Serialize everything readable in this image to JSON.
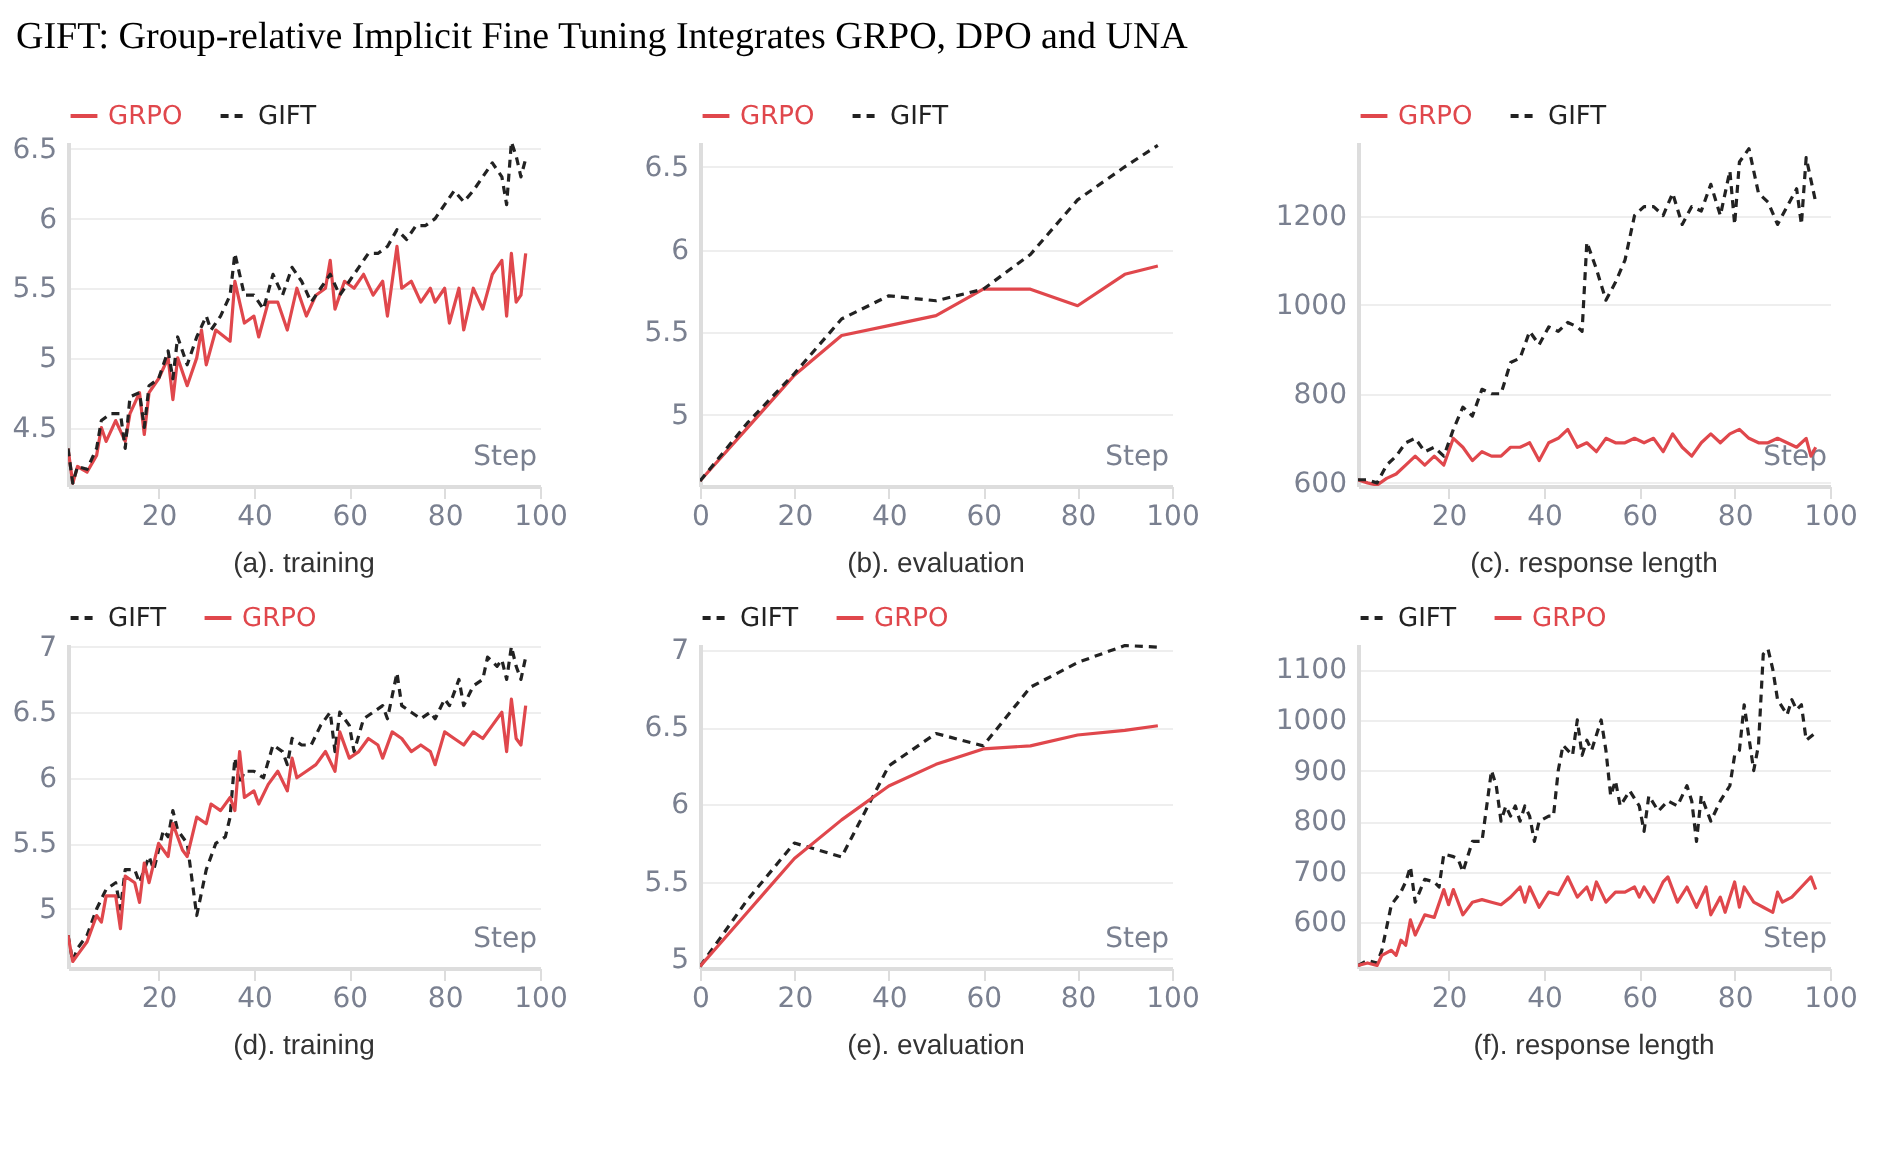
{
  "chart_data": [
    {
      "type": "line",
      "title": "GIFT: Group-relative Implicit Fine Tuning Integrates GRPO, DPO and UNA",
      "subtitle": "(a). training",
      "xlabel": "Step",
      "xlim": [
        1,
        100
      ],
      "xticks": [
        20,
        40,
        60,
        80,
        100
      ],
      "ylim": [
        4.08,
        6.55
      ],
      "yticks": [
        4.5,
        5,
        5.5,
        6,
        6.5
      ],
      "grid": "y",
      "legend": "top",
      "series": [
        {
          "name": "GRPO",
          "color": "#e0474c",
          "line_style": "solid",
          "x": [
            1,
            2,
            3,
            5,
            7,
            8,
            9,
            11,
            13,
            14,
            16,
            17,
            18,
            20,
            22,
            23,
            24,
            26,
            28,
            29,
            30,
            32,
            35,
            36,
            38,
            40,
            41,
            43,
            45,
            47,
            49,
            51,
            53,
            55,
            56,
            57,
            59,
            61,
            63,
            65,
            67,
            68,
            70,
            71,
            73,
            75,
            77,
            78,
            80,
            81,
            83,
            84,
            86,
            88,
            90,
            92,
            93,
            94,
            95,
            96,
            97
          ],
          "values": [
            4.35,
            4.1,
            4.22,
            4.18,
            4.3,
            4.5,
            4.4,
            4.55,
            4.4,
            4.6,
            4.75,
            4.45,
            4.75,
            4.85,
            5.0,
            4.7,
            5.0,
            4.8,
            5.0,
            5.2,
            4.95,
            5.2,
            5.12,
            5.55,
            5.25,
            5.3,
            5.15,
            5.4,
            5.4,
            5.2,
            5.5,
            5.3,
            5.45,
            5.5,
            5.7,
            5.35,
            5.55,
            5.5,
            5.6,
            5.45,
            5.55,
            5.3,
            5.8,
            5.5,
            5.55,
            5.4,
            5.5,
            5.4,
            5.5,
            5.25,
            5.5,
            5.2,
            5.5,
            5.35,
            5.6,
            5.7,
            5.3,
            5.75,
            5.4,
            5.45,
            5.75
          ]
        },
        {
          "name": "GIFT",
          "color": "#222222",
          "line_style": "dashed",
          "x": [
            1,
            2,
            3,
            5,
            7,
            8,
            10,
            12,
            13,
            14,
            16,
            17,
            18,
            20,
            22,
            23,
            24,
            26,
            28,
            30,
            31,
            33,
            35,
            36,
            38,
            40,
            42,
            44,
            46,
            48,
            50,
            52,
            54,
            56,
            58,
            60,
            62,
            64,
            66,
            68,
            70,
            72,
            74,
            76,
            78,
            80,
            82,
            84,
            86,
            88,
            90,
            92,
            93,
            94,
            95,
            96,
            97
          ],
          "values": [
            4.35,
            4.1,
            4.22,
            4.2,
            4.35,
            4.55,
            4.6,
            4.6,
            4.35,
            4.72,
            4.75,
            4.5,
            4.8,
            4.85,
            5.05,
            4.85,
            5.15,
            4.95,
            5.15,
            5.3,
            5.2,
            5.3,
            5.45,
            5.75,
            5.45,
            5.45,
            5.35,
            5.6,
            5.45,
            5.65,
            5.55,
            5.4,
            5.5,
            5.6,
            5.45,
            5.55,
            5.65,
            5.75,
            5.75,
            5.8,
            5.92,
            5.85,
            5.95,
            5.95,
            6.0,
            6.1,
            6.2,
            6.12,
            6.2,
            6.3,
            6.4,
            6.3,
            6.1,
            6.55,
            6.45,
            6.3,
            6.43
          ]
        }
      ]
    },
    {
      "type": "line",
      "subtitle": "(b). evaluation",
      "xlabel": "Step",
      "xlim": [
        0,
        100
      ],
      "xticks": [
        0,
        20,
        40,
        60,
        80,
        100
      ],
      "ylim": [
        4.57,
        6.65
      ],
      "yticks": [
        5,
        5.5,
        6,
        6.5
      ],
      "grid": "y",
      "legend": "top",
      "series": [
        {
          "name": "GRPO",
          "color": "#e0474c",
          "line_style": "solid",
          "x": [
            0,
            10,
            20,
            30,
            40,
            50,
            60,
            70,
            80,
            90,
            97
          ],
          "values": [
            4.6,
            4.92,
            5.24,
            5.48,
            5.54,
            5.6,
            5.76,
            5.76,
            5.66,
            5.85,
            5.9
          ]
        },
        {
          "name": "GIFT",
          "color": "#222222",
          "line_style": "dashed",
          "x": [
            0,
            10,
            20,
            30,
            40,
            50,
            60,
            70,
            80,
            90,
            97
          ],
          "values": [
            4.6,
            4.95,
            5.25,
            5.58,
            5.72,
            5.69,
            5.76,
            5.97,
            6.3,
            6.5,
            6.63
          ]
        }
      ]
    },
    {
      "type": "line",
      "subtitle": "(c). response length",
      "xlabel": "Step",
      "xlim": [
        1,
        100
      ],
      "xticks": [
        20,
        40,
        60,
        80,
        100
      ],
      "ylim": [
        593,
        1365
      ],
      "yticks": [
        600,
        800,
        1000,
        1200
      ],
      "grid": "y",
      "legend": "top",
      "series": [
        {
          "name": "GRPO",
          "color": "#e0474c",
          "line_style": "solid",
          "x": [
            1,
            3,
            5,
            7,
            9,
            11,
            13,
            15,
            17,
            19,
            21,
            23,
            25,
            27,
            29,
            31,
            33,
            35,
            37,
            39,
            41,
            43,
            45,
            47,
            49,
            51,
            53,
            55,
            57,
            59,
            61,
            63,
            65,
            67,
            69,
            71,
            73,
            75,
            77,
            79,
            81,
            83,
            85,
            87,
            89,
            91,
            93,
            95,
            96,
            97
          ],
          "values": [
            607,
            600,
            595,
            610,
            620,
            640,
            660,
            640,
            660,
            640,
            700,
            680,
            650,
            670,
            660,
            660,
            680,
            680,
            690,
            650,
            690,
            700,
            720,
            680,
            690,
            670,
            700,
            690,
            690,
            700,
            690,
            700,
            670,
            710,
            680,
            660,
            690,
            710,
            690,
            710,
            720,
            700,
            690,
            690,
            700,
            690,
            680,
            700,
            660,
            680
          ]
        },
        {
          "name": "GIFT",
          "color": "#222222",
          "line_style": "dashed",
          "x": [
            1,
            3,
            5,
            7,
            9,
            11,
            13,
            15,
            17,
            19,
            21,
            23,
            25,
            27,
            29,
            31,
            33,
            35,
            37,
            39,
            41,
            43,
            45,
            47,
            48,
            49,
            51,
            53,
            55,
            57,
            59,
            61,
            63,
            65,
            67,
            69,
            71,
            73,
            75,
            77,
            79,
            80,
            81,
            83,
            85,
            87,
            89,
            91,
            93,
            94,
            95,
            97
          ],
          "values": [
            607,
            607,
            600,
            640,
            660,
            690,
            700,
            670,
            680,
            660,
            720,
            770,
            750,
            810,
            800,
            800,
            870,
            880,
            940,
            910,
            950,
            940,
            960,
            950,
            940,
            1140,
            1080,
            1010,
            1050,
            1100,
            1200,
            1220,
            1220,
            1200,
            1250,
            1180,
            1220,
            1210,
            1270,
            1200,
            1300,
            1180,
            1320,
            1350,
            1250,
            1230,
            1180,
            1220,
            1260,
            1180,
            1330,
            1230
          ]
        }
      ]
    },
    {
      "type": "line",
      "subtitle": "(d). training",
      "xlabel": "Step",
      "xlim": [
        1,
        100
      ],
      "xticks": [
        20,
        40,
        60,
        80,
        100
      ],
      "ylim": [
        4.55,
        7.02
      ],
      "yticks": [
        5,
        5.5,
        6,
        6.5,
        7
      ],
      "grid": "y",
      "legend": "top",
      "series": [
        {
          "name": "GIFT",
          "color": "#222222",
          "line_style": "dashed",
          "x": [
            1,
            2,
            3,
            5,
            7,
            9,
            11,
            12,
            13,
            15,
            16,
            18,
            19,
            21,
            22,
            23,
            24,
            26,
            28,
            30,
            32,
            34,
            35,
            36,
            37,
            38,
            40,
            42,
            44,
            46,
            47,
            48,
            50,
            52,
            54,
            56,
            57,
            58,
            60,
            61,
            63,
            65,
            67,
            68,
            70,
            71,
            73,
            75,
            77,
            78,
            80,
            81,
            83,
            84,
            86,
            88,
            89,
            91,
            92,
            93,
            94,
            95,
            96,
            97
          ],
          "values": [
            4.8,
            4.6,
            4.7,
            4.8,
            5.0,
            5.15,
            5.2,
            5.0,
            5.3,
            5.3,
            5.2,
            5.4,
            5.3,
            5.6,
            5.55,
            5.75,
            5.6,
            5.5,
            4.95,
            5.3,
            5.5,
            5.55,
            5.7,
            6.15,
            5.95,
            6.05,
            6.05,
            6.0,
            6.25,
            6.2,
            6.1,
            6.3,
            6.25,
            6.25,
            6.4,
            6.5,
            6.2,
            6.5,
            6.4,
            6.2,
            6.45,
            6.5,
            6.55,
            6.45,
            6.8,
            6.55,
            6.5,
            6.45,
            6.5,
            6.45,
            6.6,
            6.55,
            6.75,
            6.55,
            6.7,
            6.75,
            6.92,
            6.85,
            6.9,
            6.75,
            7.0,
            6.85,
            6.75,
            6.92
          ]
        },
        {
          "name": "GRPO",
          "color": "#e0474c",
          "line_style": "solid",
          "x": [
            1,
            2,
            3,
            5,
            7,
            8,
            9,
            11,
            12,
            13,
            15,
            16,
            17,
            18,
            20,
            22,
            23,
            25,
            26,
            28,
            30,
            31,
            33,
            35,
            36,
            37,
            38,
            40,
            41,
            43,
            45,
            47,
            48,
            49,
            51,
            53,
            55,
            57,
            58,
            60,
            62,
            64,
            66,
            67,
            69,
            71,
            73,
            75,
            77,
            78,
            80,
            82,
            84,
            86,
            88,
            90,
            92,
            93,
            94,
            95,
            96,
            97
          ],
          "values": [
            4.8,
            4.6,
            4.65,
            4.75,
            4.95,
            4.9,
            5.1,
            5.1,
            4.85,
            5.25,
            5.2,
            5.05,
            5.35,
            5.2,
            5.5,
            5.4,
            5.65,
            5.45,
            5.4,
            5.7,
            5.65,
            5.8,
            5.75,
            5.85,
            5.75,
            6.2,
            5.85,
            5.9,
            5.8,
            5.95,
            6.05,
            5.9,
            6.15,
            6.0,
            6.05,
            6.1,
            6.2,
            6.05,
            6.35,
            6.15,
            6.2,
            6.3,
            6.25,
            6.15,
            6.35,
            6.3,
            6.2,
            6.25,
            6.2,
            6.1,
            6.35,
            6.3,
            6.25,
            6.35,
            6.3,
            6.4,
            6.5,
            6.2,
            6.6,
            6.3,
            6.25,
            6.55
          ]
        }
      ]
    },
    {
      "type": "line",
      "subtitle": "(e). evaluation",
      "xlabel": "Step",
      "xlim": [
        0,
        100
      ],
      "xticks": [
        0,
        20,
        40,
        60,
        80,
        100
      ],
      "ylim": [
        4.94,
        7.04
      ],
      "yticks": [
        5,
        5.5,
        6,
        6.5,
        7
      ],
      "grid": "y",
      "legend": "top",
      "series": [
        {
          "name": "GIFT",
          "color": "#222222",
          "line_style": "dashed",
          "x": [
            0,
            10,
            20,
            30,
            40,
            50,
            60,
            70,
            80,
            90,
            97
          ],
          "values": [
            4.95,
            5.38,
            5.75,
            5.66,
            6.25,
            6.46,
            6.38,
            6.76,
            6.92,
            7.03,
            7.02
          ]
        },
        {
          "name": "GRPO",
          "color": "#e0474c",
          "line_style": "solid",
          "x": [
            0,
            10,
            20,
            30,
            40,
            50,
            60,
            70,
            80,
            90,
            97
          ],
          "values": [
            4.95,
            5.3,
            5.65,
            5.9,
            6.12,
            6.26,
            6.36,
            6.38,
            6.45,
            6.48,
            6.51
          ]
        }
      ]
    },
    {
      "type": "line",
      "subtitle": "(f). response length",
      "xlabel": "Step",
      "xlim": [
        1,
        100
      ],
      "xticks": [
        20,
        40,
        60,
        80,
        100
      ],
      "ylim": [
        510,
        1150
      ],
      "yticks": [
        600,
        700,
        800,
        900,
        1000,
        1100
      ],
      "grid": "y",
      "legend": "top",
      "series": [
        {
          "name": "GIFT",
          "color": "#222222",
          "line_style": "dashed",
          "x": [
            1,
            3,
            5,
            6,
            8,
            10,
            11,
            12,
            13,
            15,
            17,
            18,
            19,
            21,
            22,
            23,
            25,
            27,
            29,
            30,
            31,
            32,
            33,
            34,
            35,
            36,
            37,
            38,
            39,
            41,
            42,
            43,
            44,
            46,
            47,
            48,
            49,
            50,
            52,
            53,
            54,
            55,
            56,
            58,
            60,
            61,
            62,
            64,
            66,
            68,
            70,
            71,
            72,
            73,
            75,
            77,
            79,
            80,
            81,
            82,
            84,
            85,
            86,
            87,
            88,
            89,
            91,
            92,
            93,
            94,
            95,
            97
          ],
          "values": [
            515,
            525,
            520,
            545,
            635,
            660,
            680,
            710,
            640,
            685,
            680,
            670,
            735,
            730,
            725,
            700,
            760,
            760,
            900,
            870,
            800,
            830,
            810,
            830,
            800,
            830,
            810,
            760,
            800,
            810,
            810,
            900,
            950,
            930,
            1000,
            930,
            960,
            940,
            1000,
            940,
            850,
            880,
            830,
            860,
            830,
            780,
            850,
            820,
            840,
            830,
            870,
            840,
            760,
            850,
            800,
            840,
            870,
            930,
            940,
            1030,
            900,
            950,
            1130,
            1140,
            1100,
            1040,
            1010,
            1040,
            1020,
            1030,
            960,
            975
          ]
        },
        {
          "name": "GRPO",
          "color": "#e0474c",
          "line_style": "solid",
          "x": [
            1,
            3,
            5,
            6,
            8,
            9,
            10,
            11,
            12,
            13,
            15,
            17,
            19,
            20,
            21,
            23,
            25,
            27,
            29,
            31,
            33,
            35,
            36,
            37,
            39,
            41,
            43,
            45,
            47,
            49,
            50,
            51,
            53,
            55,
            57,
            59,
            60,
            61,
            63,
            65,
            66,
            68,
            70,
            72,
            74,
            75,
            77,
            78,
            80,
            81,
            82,
            84,
            86,
            88,
            89,
            90,
            92,
            94,
            96,
            97
          ],
          "values": [
            515,
            520,
            515,
            535,
            545,
            535,
            565,
            555,
            605,
            575,
            615,
            610,
            665,
            635,
            665,
            615,
            640,
            645,
            640,
            635,
            650,
            670,
            640,
            670,
            630,
            660,
            655,
            690,
            650,
            670,
            645,
            680,
            640,
            660,
            660,
            670,
            650,
            670,
            640,
            680,
            690,
            640,
            670,
            630,
            670,
            615,
            650,
            620,
            680,
            630,
            670,
            640,
            630,
            620,
            660,
            640,
            650,
            670,
            690,
            665
          ]
        }
      ]
    }
  ]
}
